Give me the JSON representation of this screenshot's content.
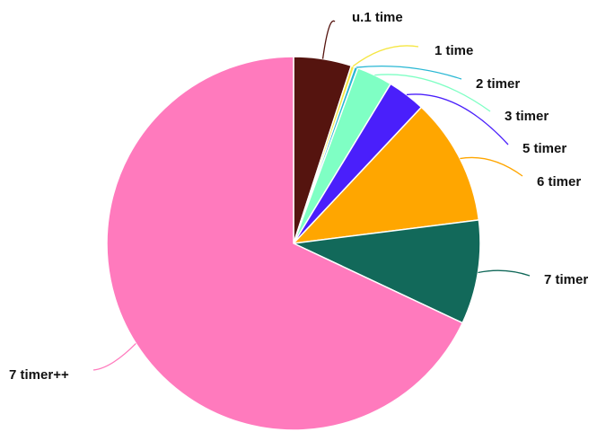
{
  "chart_data": {
    "type": "pie",
    "title": "",
    "slices": [
      {
        "label": "u.1 time",
        "value": 5,
        "color": "#55140f"
      },
      {
        "label": "1 time",
        "value": 0.3,
        "color": "#f5e642"
      },
      {
        "label": "2 timer",
        "value": 0.3,
        "color": "#2ab8d4"
      },
      {
        "label": "3 timer",
        "value": 3.1,
        "color": "#7fffc4"
      },
      {
        "label": "5 timer",
        "value": 3.3,
        "color": "#4a1ffb"
      },
      {
        "label": "6 timer",
        "value": 11,
        "color": "#ffa600"
      },
      {
        "label": "7 timer",
        "value": 9,
        "color": "#12695a"
      },
      {
        "label": "7 timer++",
        "value": 68,
        "color": "#ff7abd"
      }
    ]
  }
}
